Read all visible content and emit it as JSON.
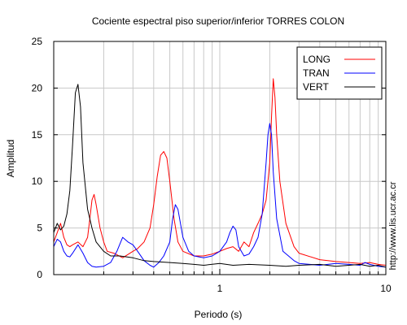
{
  "chart_data": {
    "type": "line",
    "title": "Cociente espectral piso superior/inferior  TORRES COLON",
    "xlabel": "Periodo (s)",
    "ylabel": "Amplitud",
    "xscale": "log",
    "xlim": [
      0.1,
      10
    ],
    "ylim": [
      0,
      25
    ],
    "grid": true,
    "legend_position": "top-right",
    "yticks": [
      "0",
      "5",
      "10",
      "15",
      "20",
      "25"
    ],
    "xticks": [
      "1",
      "10"
    ],
    "side_text": "http://www.lis.ucr.ac.cr",
    "series": [
      {
        "name": "LONG",
        "color": "#ff0000",
        "points": [
          [
            0.1,
            3.5
          ],
          [
            0.105,
            4.5
          ],
          [
            0.11,
            5.5
          ],
          [
            0.115,
            4.0
          ],
          [
            0.12,
            3.2
          ],
          [
            0.125,
            3.0
          ],
          [
            0.13,
            3.2
          ],
          [
            0.14,
            3.5
          ],
          [
            0.15,
            3.0
          ],
          [
            0.155,
            3.5
          ],
          [
            0.16,
            4.0
          ],
          [
            0.165,
            6.0
          ],
          [
            0.17,
            8.0
          ],
          [
            0.175,
            8.6
          ],
          [
            0.18,
            7.5
          ],
          [
            0.19,
            5.0
          ],
          [
            0.2,
            3.5
          ],
          [
            0.21,
            2.5
          ],
          [
            0.23,
            2.3
          ],
          [
            0.26,
            1.8
          ],
          [
            0.3,
            2.5
          ],
          [
            0.32,
            2.8
          ],
          [
            0.35,
            3.5
          ],
          [
            0.38,
            5.0
          ],
          [
            0.4,
            7.5
          ],
          [
            0.42,
            10.5
          ],
          [
            0.44,
            12.8
          ],
          [
            0.46,
            13.2
          ],
          [
            0.48,
            12.5
          ],
          [
            0.5,
            10.0
          ],
          [
            0.53,
            6.0
          ],
          [
            0.56,
            3.5
          ],
          [
            0.6,
            2.5
          ],
          [
            0.7,
            2.0
          ],
          [
            0.8,
            2.0
          ],
          [
            0.9,
            2.2
          ],
          [
            1.0,
            2.5
          ],
          [
            1.1,
            2.8
          ],
          [
            1.2,
            3.0
          ],
          [
            1.3,
            2.5
          ],
          [
            1.4,
            3.5
          ],
          [
            1.5,
            3.0
          ],
          [
            1.6,
            4.5
          ],
          [
            1.7,
            5.5
          ],
          [
            1.8,
            6.5
          ],
          [
            1.9,
            8.0
          ],
          [
            2.0,
            12.0
          ],
          [
            2.05,
            17.0
          ],
          [
            2.1,
            21.0
          ],
          [
            2.15,
            19.0
          ],
          [
            2.2,
            15.0
          ],
          [
            2.3,
            10.0
          ],
          [
            2.5,
            5.5
          ],
          [
            2.8,
            3.0
          ],
          [
            3.0,
            2.3
          ],
          [
            4.0,
            1.6
          ],
          [
            5.0,
            1.4
          ],
          [
            6.0,
            1.3
          ],
          [
            7.0,
            1.2
          ],
          [
            8.0,
            1.3
          ],
          [
            9.0,
            1.1
          ],
          [
            10.0,
            1.0
          ]
        ]
      },
      {
        "name": "TRAN",
        "color": "#0000ff",
        "points": [
          [
            0.1,
            3.0
          ],
          [
            0.105,
            3.8
          ],
          [
            0.11,
            3.5
          ],
          [
            0.115,
            2.5
          ],
          [
            0.12,
            2.0
          ],
          [
            0.125,
            1.9
          ],
          [
            0.13,
            2.3
          ],
          [
            0.14,
            3.2
          ],
          [
            0.15,
            2.3
          ],
          [
            0.16,
            1.3
          ],
          [
            0.17,
            0.9
          ],
          [
            0.18,
            0.8
          ],
          [
            0.2,
            0.9
          ],
          [
            0.22,
            1.3
          ],
          [
            0.24,
            2.5
          ],
          [
            0.26,
            4.0
          ],
          [
            0.28,
            3.5
          ],
          [
            0.3,
            3.2
          ],
          [
            0.32,
            2.5
          ],
          [
            0.35,
            1.5
          ],
          [
            0.38,
            1.0
          ],
          [
            0.4,
            0.8
          ],
          [
            0.43,
            1.3
          ],
          [
            0.46,
            2.0
          ],
          [
            0.5,
            3.5
          ],
          [
            0.52,
            6.0
          ],
          [
            0.54,
            7.5
          ],
          [
            0.56,
            7.0
          ],
          [
            0.6,
            4.0
          ],
          [
            0.65,
            2.5
          ],
          [
            0.7,
            2.0
          ],
          [
            0.8,
            1.8
          ],
          [
            0.9,
            2.0
          ],
          [
            1.0,
            2.5
          ],
          [
            1.1,
            3.5
          ],
          [
            1.15,
            4.5
          ],
          [
            1.2,
            5.2
          ],
          [
            1.25,
            4.8
          ],
          [
            1.3,
            3.0
          ],
          [
            1.4,
            2.0
          ],
          [
            1.5,
            2.2
          ],
          [
            1.6,
            3.0
          ],
          [
            1.7,
            4.0
          ],
          [
            1.8,
            6.5
          ],
          [
            1.9,
            12.0
          ],
          [
            1.95,
            15.0
          ],
          [
            2.0,
            16.2
          ],
          [
            2.05,
            15.0
          ],
          [
            2.1,
            11.0
          ],
          [
            2.2,
            6.0
          ],
          [
            2.4,
            2.5
          ],
          [
            2.8,
            1.5
          ],
          [
            3.0,
            1.2
          ],
          [
            4.0,
            1.0
          ],
          [
            5.0,
            1.2
          ],
          [
            6.0,
            1.1
          ],
          [
            7.0,
            1.0
          ],
          [
            7.5,
            1.3
          ],
          [
            8.0,
            1.1
          ],
          [
            9.0,
            0.9
          ],
          [
            10.0,
            0.8
          ]
        ]
      },
      {
        "name": "VERT",
        "color": "#000000",
        "points": [
          [
            0.1,
            4.5
          ],
          [
            0.105,
            5.5
          ],
          [
            0.11,
            4.8
          ],
          [
            0.115,
            5.2
          ],
          [
            0.12,
            6.5
          ],
          [
            0.125,
            9.0
          ],
          [
            0.13,
            14.0
          ],
          [
            0.135,
            19.5
          ],
          [
            0.14,
            20.4
          ],
          [
            0.145,
            18.0
          ],
          [
            0.15,
            12.0
          ],
          [
            0.16,
            7.0
          ],
          [
            0.17,
            5.0
          ],
          [
            0.18,
            3.5
          ],
          [
            0.2,
            2.5
          ],
          [
            0.22,
            2.0
          ],
          [
            0.25,
            2.0
          ],
          [
            0.3,
            1.8
          ],
          [
            0.35,
            1.5
          ],
          [
            0.4,
            1.4
          ],
          [
            0.5,
            1.3
          ],
          [
            0.6,
            1.2
          ],
          [
            0.7,
            1.1
          ],
          [
            0.8,
            1.0
          ],
          [
            1.0,
            1.2
          ],
          [
            1.2,
            1.0
          ],
          [
            1.5,
            1.1
          ],
          [
            2.0,
            1.0
          ],
          [
            2.5,
            0.9
          ],
          [
            3.0,
            1.0
          ],
          [
            4.0,
            1.1
          ],
          [
            5.0,
            0.9
          ],
          [
            6.0,
            1.0
          ],
          [
            7.0,
            1.1
          ],
          [
            8.0,
            0.9
          ],
          [
            9.0,
            1.0
          ],
          [
            10.0,
            0.8
          ]
        ]
      }
    ]
  }
}
